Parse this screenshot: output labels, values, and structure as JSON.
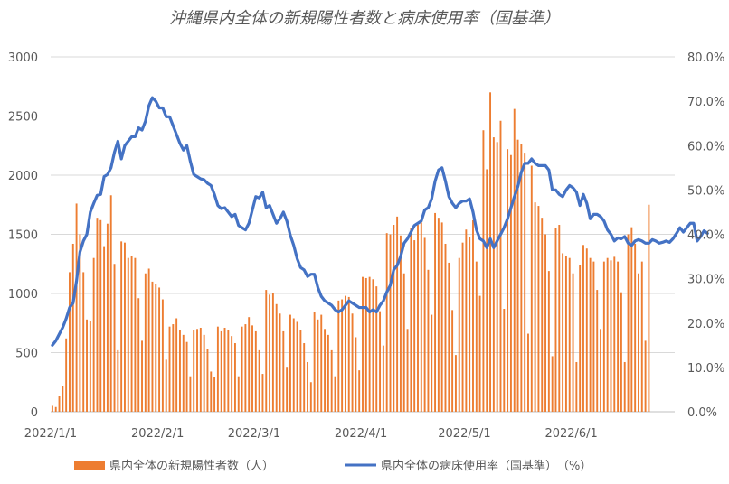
{
  "chart_data": {
    "type": "bar+line",
    "title": "沖縄県内全体の新規陽性者数と病床使用率（国基準）",
    "x_range": [
      "2022/1/1",
      "2022/6/30"
    ],
    "x_ticks": [
      "2022/1/1",
      "2022/2/1",
      "2022/3/1",
      "2022/4/1",
      "2022/5/1",
      "2022/6/1"
    ],
    "y_left": {
      "min": 0,
      "max": 3000,
      "ticks": [
        "0",
        "500",
        "1000",
        "1500",
        "2000",
        "2500",
        "3000"
      ]
    },
    "y_right": {
      "min": 0,
      "max": 80,
      "ticks": [
        "0.0%",
        "10.0%",
        "20.0%",
        "30.0%",
        "40.0%",
        "50.0%",
        "60.0%",
        "70.0%",
        "80.0%"
      ]
    },
    "grid": true,
    "legend_position": "bottom",
    "series": [
      {
        "name": "県内全体の新規陽性者数（人）",
        "type": "bar",
        "axis": "left",
        "color": "#ED7D31",
        "values": [
          50,
          40,
          130,
          220,
          620,
          1180,
          1420,
          1760,
          1500,
          1180,
          780,
          770,
          1300,
          1640,
          1620,
          1400,
          1590,
          1830,
          1250,
          520,
          1440,
          1430,
          1300,
          1320,
          1300,
          960,
          600,
          1170,
          1210,
          1100,
          1080,
          1050,
          950,
          440,
          720,
          740,
          790,
          690,
          650,
          590,
          300,
          690,
          700,
          710,
          650,
          530,
          340,
          290,
          720,
          680,
          710,
          690,
          640,
          580,
          300,
          720,
          740,
          800,
          730,
          680,
          520,
          320,
          1030,
          990,
          1000,
          910,
          830,
          680,
          380,
          820,
          790,
          760,
          690,
          580,
          420,
          250,
          840,
          780,
          820,
          700,
          650,
          520,
          300,
          940,
          950,
          980,
          970,
          830,
          630,
          350,
          1140,
          1130,
          1140,
          1120,
          1060,
          850,
          560,
          1510,
          1500,
          1580,
          1650,
          1490,
          1170,
          700,
          1550,
          1450,
          1580,
          1600,
          1470,
          1200,
          820,
          1680,
          1640,
          1600,
          1420,
          1260,
          860,
          480,
          1300,
          1430,
          1540,
          1480,
          1620,
          1270,
          980,
          2380,
          2050,
          2700,
          2320,
          2280,
          2460,
          870,
          2220,
          2170,
          2560,
          2300,
          2260,
          2190,
          660,
          2080,
          1770,
          1740,
          1640,
          1500,
          1190,
          470,
          1550,
          1580,
          1340,
          1320,
          1300,
          1170,
          420,
          1240,
          1410,
          1380,
          1300,
          1270,
          1030,
          700,
          1270,
          1300,
          1280,
          1310,
          1270,
          1010,
          420,
          1500,
          1560,
          1420,
          1170,
          1270,
          600,
          1750
        ]
      },
      {
        "name": "県内全体の病床使用率（国基準）　（%）",
        "type": "line",
        "axis": "right",
        "color": "#4472C4",
        "values": [
          15,
          16,
          17.5,
          19,
          21,
          23.5,
          24.5,
          29.5,
          36,
          38.5,
          40,
          45,
          47,
          48.8,
          49,
          53,
          53.5,
          55,
          58.5,
          61,
          57,
          60,
          61,
          62,
          62,
          64,
          63.5,
          65.5,
          69,
          70.8,
          70,
          68.5,
          68.5,
          66.5,
          66.5,
          64.5,
          62.5,
          60.5,
          59,
          60,
          56.5,
          53.5,
          53,
          52.5,
          52.3,
          51.5,
          51,
          49,
          46.5,
          45.8,
          46,
          45,
          44,
          44.5,
          42,
          41.5,
          41,
          42.5,
          45.5,
          48.5,
          48.2,
          49.5,
          46,
          46.5,
          44.5,
          42.5,
          43.5,
          45,
          43,
          39.8,
          37.5,
          34.5,
          32.5,
          32,
          30.5,
          31,
          31,
          28,
          26,
          25,
          24.5,
          24,
          23,
          22.5,
          23,
          24,
          25,
          24.5,
          24,
          23.5,
          23.5,
          23.5,
          22.5,
          23,
          22.5,
          24,
          25,
          27,
          28.5,
          32,
          33,
          35,
          38,
          39,
          40.5,
          42,
          42.5,
          43,
          45.5,
          46,
          48,
          52,
          54.5,
          55,
          52,
          48.5,
          47,
          46,
          47,
          47.5,
          47.5,
          48,
          45,
          41,
          39,
          38.5,
          37,
          39,
          37,
          38.5,
          40,
          41.5,
          43.5,
          46,
          48.5,
          50.8,
          54,
          56,
          56,
          57,
          56,
          55.5,
          55.5,
          55.5,
          54.5,
          50,
          50,
          49,
          48.5,
          50,
          51,
          50.5,
          49.5,
          46.5,
          49,
          47,
          43.5,
          44.5,
          44.5,
          44,
          43,
          41,
          40,
          38.5,
          39.2,
          39,
          39.5,
          38,
          37.5,
          38.5,
          38.8,
          38.5,
          38,
          38,
          38.8,
          38.5,
          38,
          38.2,
          38.5,
          38.2,
          39,
          40.2,
          41.5,
          40.5,
          41.5,
          42.5,
          42.5,
          38.5,
          39.5,
          40.8,
          40.2
        ]
      }
    ]
  }
}
